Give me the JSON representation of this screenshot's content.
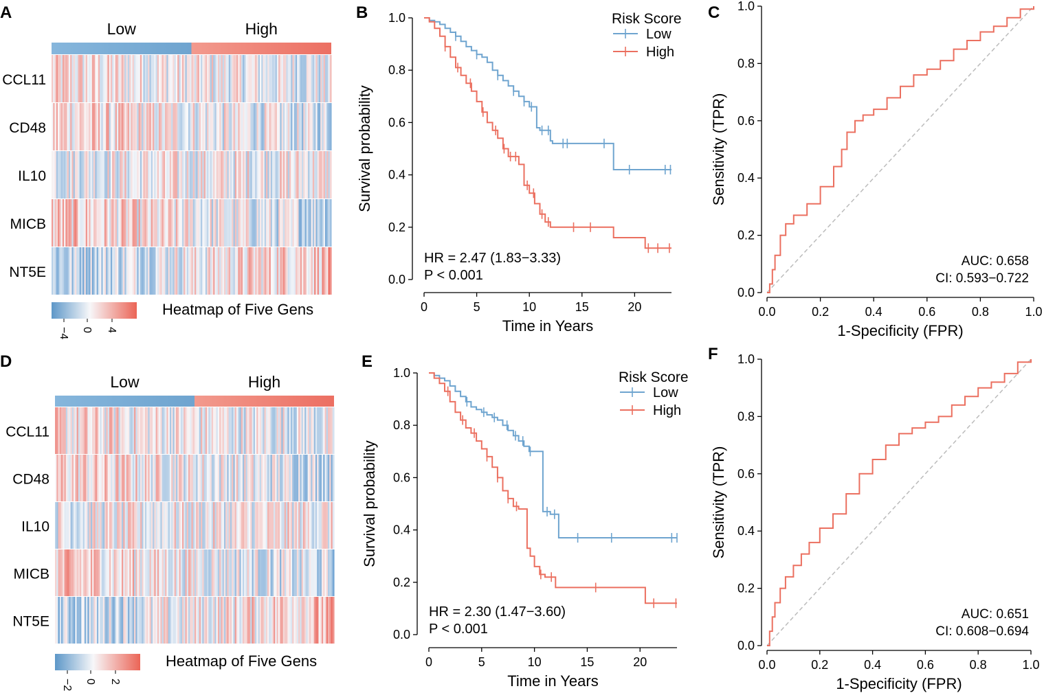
{
  "figure": {
    "heatmap_panels": [
      {
        "letter": "A",
        "groups": [
          "Low",
          "High"
        ],
        "genes": [
          "CCL11",
          "CD48",
          "IL10",
          "MICB",
          "NT5E"
        ],
        "legend_title": "Heatmap of Five Gens",
        "legend_ticks": [
          "-4",
          "0",
          "4"
        ],
        "group_colors": {
          "low": "#7fb0d6",
          "high": "#ef8577"
        }
      },
      {
        "letter": "D",
        "groups": [
          "Low",
          "High"
        ],
        "genes": [
          "CCL11",
          "CD48",
          "IL10",
          "MICB",
          "NT5E"
        ],
        "legend_title": "Heatmap of Five Gens",
        "legend_ticks": [
          "-2",
          "0",
          "2"
        ],
        "group_colors": {
          "low": "#7fb0d6",
          "high": "#ef8577"
        }
      }
    ]
  },
  "chart_data": [
    {
      "panel": "B",
      "type": "line",
      "xlabel": "Time in Years",
      "ylabel": "Survival probability",
      "xlim": [
        0,
        23.5
      ],
      "ylim": [
        0,
        1.0
      ],
      "xticks": [
        "0",
        "5",
        "10",
        "15",
        "20"
      ],
      "yticks": [
        "0.0",
        "0.2",
        "0.4",
        "0.6",
        "0.8",
        "1.0"
      ],
      "legend_title": "Risk Score",
      "annotations": [
        "HR = 2.47 (1.83−3.33)",
        "P < 0.001"
      ],
      "series": [
        {
          "name": "Low",
          "color": "#6ea4cf",
          "x": [
            0,
            0.5,
            1,
            1.5,
            2,
            2.5,
            3,
            3.5,
            4,
            4.5,
            5,
            5.5,
            6,
            6.5,
            7,
            7.5,
            8,
            8.5,
            9,
            9.5,
            10,
            10.5,
            10.7,
            11,
            11.5,
            12,
            12.2,
            13,
            14,
            16,
            17.8,
            18,
            20,
            23.5
          ],
          "y": [
            1.0,
            0.99,
            0.985,
            0.975,
            0.96,
            0.945,
            0.93,
            0.91,
            0.89,
            0.875,
            0.86,
            0.85,
            0.83,
            0.8,
            0.78,
            0.76,
            0.74,
            0.72,
            0.7,
            0.68,
            0.66,
            0.66,
            0.58,
            0.57,
            0.57,
            0.53,
            0.52,
            0.52,
            0.52,
            0.52,
            0.52,
            0.42,
            0.42,
            0.42
          ],
          "censor": [
            3,
            5,
            7,
            8.5,
            9.5,
            10.2,
            11.2,
            11.8,
            13.2,
            13.6,
            17.1,
            19.5,
            22.9,
            23.4
          ]
        },
        {
          "name": "High",
          "color": "#eb6f5f",
          "x": [
            0,
            0.5,
            1,
            1.5,
            2,
            2.5,
            3,
            3.5,
            4,
            4.5,
            5,
            5.5,
            6,
            6.5,
            7,
            7.5,
            8,
            8.5,
            9,
            9.5,
            10,
            10.5,
            11,
            11.5,
            12,
            12.5,
            14,
            16,
            17.5,
            18,
            20,
            21,
            23.5
          ],
          "y": [
            1.0,
            0.985,
            0.96,
            0.93,
            0.89,
            0.85,
            0.81,
            0.78,
            0.75,
            0.72,
            0.68,
            0.64,
            0.6,
            0.57,
            0.54,
            0.5,
            0.47,
            0.47,
            0.44,
            0.36,
            0.33,
            0.29,
            0.25,
            0.22,
            0.2,
            0.2,
            0.2,
            0.2,
            0.2,
            0.16,
            0.16,
            0.12,
            0.12
          ],
          "censor": [
            2,
            3.2,
            4.4,
            5.6,
            6.8,
            7.6,
            8.2,
            8.7,
            9.8,
            10.4,
            11.2,
            11.8,
            14.2,
            15.8,
            21.3,
            22.2,
            23.3
          ]
        }
      ]
    },
    {
      "panel": "C",
      "type": "line",
      "xlabel": "1-Specificity (FPR)",
      "ylabel": "Sensitivity (TPR)",
      "xlim": [
        0,
        1.0
      ],
      "ylim": [
        0,
        1.0
      ],
      "xticks": [
        "0.0",
        "0.2",
        "0.4",
        "0.6",
        "0.8",
        "1.0"
      ],
      "yticks": [
        "0.0",
        "0.2",
        "0.4",
        "0.6",
        "0.8",
        "1.0"
      ],
      "annotations": [
        "AUC: 0.658",
        "CI: 0.593−0.722"
      ],
      "series": [
        {
          "name": "ROC",
          "color": "#eb6f5f",
          "x": [
            0,
            0.01,
            0.02,
            0.03,
            0.05,
            0.07,
            0.1,
            0.15,
            0.2,
            0.25,
            0.28,
            0.3,
            0.33,
            0.36,
            0.4,
            0.45,
            0.5,
            0.55,
            0.6,
            0.65,
            0.7,
            0.75,
            0.8,
            0.85,
            0.9,
            0.95,
            1.0
          ],
          "y": [
            0,
            0.03,
            0.08,
            0.13,
            0.2,
            0.24,
            0.27,
            0.31,
            0.37,
            0.44,
            0.5,
            0.56,
            0.6,
            0.62,
            0.64,
            0.68,
            0.72,
            0.76,
            0.78,
            0.81,
            0.85,
            0.88,
            0.91,
            0.93,
            0.96,
            0.99,
            1.0
          ]
        },
        {
          "name": "Reference",
          "color": "#bbbbbb",
          "x": [
            0,
            1.0
          ],
          "y": [
            0,
            1.0
          ]
        }
      ]
    },
    {
      "panel": "E",
      "type": "line",
      "xlabel": "Time in Years",
      "ylabel": "Survival probability",
      "xlim": [
        0,
        23.5
      ],
      "ylim": [
        0,
        1.0
      ],
      "xticks": [
        "0",
        "5",
        "10",
        "15",
        "20"
      ],
      "yticks": [
        "0.0",
        "0.2",
        "0.4",
        "0.6",
        "0.8",
        "1.0"
      ],
      "legend_title": "Risk Score",
      "annotations": [
        "HR = 2.30 (1.47−3.60)",
        "P < 0.001"
      ],
      "series": [
        {
          "name": "Low",
          "color": "#6ea4cf",
          "x": [
            0,
            0.5,
            1,
            1.5,
            2,
            2.5,
            3,
            3.5,
            4,
            4.5,
            5,
            5.5,
            6,
            6.5,
            7,
            7.5,
            8,
            8.5,
            9,
            9.5,
            10,
            10.5,
            10.8,
            11,
            11.5,
            12,
            12.3,
            14,
            17,
            20,
            23.5
          ],
          "y": [
            1.0,
            0.99,
            0.98,
            0.97,
            0.95,
            0.93,
            0.91,
            0.89,
            0.87,
            0.86,
            0.85,
            0.84,
            0.83,
            0.82,
            0.8,
            0.78,
            0.76,
            0.74,
            0.72,
            0.7,
            0.7,
            0.7,
            0.47,
            0.47,
            0.46,
            0.46,
            0.37,
            0.37,
            0.37,
            0.37,
            0.37
          ],
          "censor": [
            3.6,
            5.2,
            6.2,
            7.4,
            8.2,
            8.9,
            9.6,
            11.2,
            11.9,
            14.1,
            17.3,
            23.0,
            23.5
          ]
        },
        {
          "name": "High",
          "color": "#eb6f5f",
          "x": [
            0,
            0.5,
            1,
            1.5,
            2,
            2.5,
            3,
            3.5,
            4,
            4.5,
            5,
            5.5,
            6,
            6.5,
            7,
            7.5,
            8,
            8.5,
            9,
            9.3,
            9.6,
            10,
            10.5,
            11,
            11.5,
            12,
            13,
            16,
            20,
            20.5,
            23.5
          ],
          "y": [
            1.0,
            0.98,
            0.96,
            0.93,
            0.89,
            0.85,
            0.82,
            0.79,
            0.77,
            0.74,
            0.71,
            0.68,
            0.64,
            0.6,
            0.55,
            0.52,
            0.49,
            0.48,
            0.48,
            0.33,
            0.3,
            0.26,
            0.23,
            0.22,
            0.22,
            0.18,
            0.18,
            0.18,
            0.18,
            0.12,
            0.12
          ],
          "censor": [
            1.8,
            3.2,
            4.3,
            5.5,
            6.5,
            7.5,
            8.3,
            10.6,
            11.6,
            15.8,
            21.3,
            23.4
          ]
        }
      ]
    },
    {
      "panel": "F",
      "type": "line",
      "xlabel": "1-Specificity (FPR)",
      "ylabel": "Sensitivity (TPR)",
      "xlim": [
        0,
        1.0
      ],
      "ylim": [
        0,
        1.0
      ],
      "xticks": [
        "0.0",
        "0.2",
        "0.4",
        "0.6",
        "0.8",
        "1.0"
      ],
      "yticks": [
        "0.0",
        "0.2",
        "0.4",
        "0.6",
        "0.8",
        "1.0"
      ],
      "annotations": [
        "AUC: 0.651",
        "CI: 0.608−0.694"
      ],
      "series": [
        {
          "name": "ROC",
          "color": "#eb6f5f",
          "x": [
            0,
            0.01,
            0.02,
            0.03,
            0.05,
            0.07,
            0.1,
            0.13,
            0.16,
            0.2,
            0.25,
            0.3,
            0.35,
            0.4,
            0.45,
            0.5,
            0.55,
            0.6,
            0.65,
            0.7,
            0.75,
            0.8,
            0.85,
            0.9,
            0.95,
            1.0
          ],
          "y": [
            0,
            0.05,
            0.1,
            0.15,
            0.2,
            0.24,
            0.28,
            0.32,
            0.36,
            0.41,
            0.46,
            0.53,
            0.6,
            0.65,
            0.7,
            0.74,
            0.76,
            0.78,
            0.8,
            0.84,
            0.87,
            0.9,
            0.92,
            0.95,
            0.99,
            1.0
          ]
        },
        {
          "name": "Reference",
          "color": "#bbbbbb",
          "x": [
            0,
            1.0
          ],
          "y": [
            0,
            1.0
          ]
        }
      ]
    }
  ]
}
